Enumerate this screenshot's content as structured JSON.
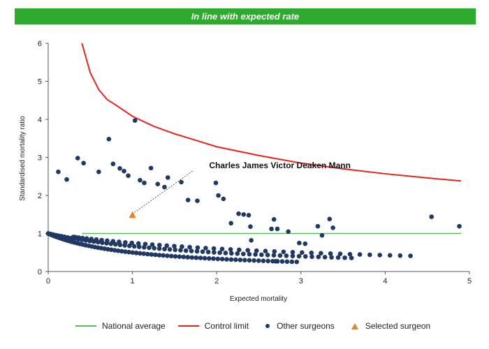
{
  "banner": {
    "text": "In line with expected rate",
    "color": "#2eaa2e"
  },
  "chart_data": {
    "type": "scatter",
    "xlabel": "Expected mortality",
    "ylabel": "Standardised mortality ratio",
    "xlim": [
      0,
      5
    ],
    "ylim": [
      0,
      6
    ],
    "x_ticks": [
      "0",
      "1",
      "2",
      "3",
      "4",
      "5"
    ],
    "y_ticks": [
      "0",
      "1",
      "2",
      "3",
      "4",
      "5",
      "6"
    ],
    "grid": false,
    "legend_position": "bottom",
    "series": [
      {
        "name": "National average",
        "type": "line",
        "color": "#5cb85c",
        "x": [
          0.4,
          4.9
        ],
        "y": [
          1,
          1
        ]
      },
      {
        "name": "Control limit",
        "type": "line",
        "color": "#e8231f",
        "x": [
          0.4,
          0.5,
          0.6,
          0.7,
          0.8,
          1.0,
          1.25,
          1.5,
          1.75,
          2.0,
          2.5,
          3.0,
          3.5,
          4.0,
          4.5,
          4.9
        ],
        "y": [
          6.0,
          5.22,
          4.78,
          4.52,
          4.38,
          4.08,
          3.82,
          3.62,
          3.45,
          3.28,
          3.05,
          2.85,
          2.7,
          2.57,
          2.46,
          2.38
        ]
      },
      {
        "name": "Other surgeons",
        "type": "scatter",
        "color": "#1f3864",
        "bands": [
          {
            "deaths": 1,
            "x_from": 0.0,
            "x_to": 2.95,
            "n": 70
          },
          {
            "deaths": 2,
            "x_from": 0.0,
            "x_to": 3.6,
            "n": 62
          },
          {
            "deaths": 3,
            "x_from": 0.3,
            "x_to": 4.3,
            "n": 45
          }
        ],
        "x": [
          0.12,
          0.22,
          0.35,
          0.42,
          0.6,
          0.72,
          0.77,
          0.85,
          0.9,
          0.95,
          1.03,
          1.09,
          1.14,
          1.22,
          1.3,
          1.38,
          1.42,
          1.58,
          1.66,
          1.77,
          1.99,
          2.02,
          2.08,
          2.17,
          2.26,
          2.32,
          2.38,
          2.4,
          2.41,
          2.65,
          2.68,
          2.7,
          2.72,
          2.85,
          2.98,
          3.05,
          3.2,
          3.25,
          3.34,
          3.38,
          4.55,
          4.88
        ],
        "y": [
          2.62,
          2.42,
          2.98,
          2.85,
          2.62,
          3.48,
          2.83,
          2.71,
          2.64,
          2.52,
          3.97,
          2.4,
          2.33,
          2.72,
          2.3,
          2.22,
          2.47,
          2.35,
          1.88,
          1.86,
          2.33,
          2.0,
          1.91,
          1.27,
          1.52,
          1.5,
          1.48,
          1.18,
          0.82,
          1.12,
          1.37,
          0.27,
          1.12,
          1.05,
          0.75,
          0.73,
          1.19,
          0.95,
          1.38,
          1.15,
          1.44,
          1.19
        ]
      },
      {
        "name": "Selected surgeon",
        "type": "scatter",
        "marker": "triangle",
        "color": "#f0821e",
        "x": [
          1.0
        ],
        "y": [
          1.48
        ]
      }
    ],
    "annotations": [
      {
        "text": "Charles James Victor Deaken Mann",
        "x": 2.75,
        "y": 2.72,
        "points_to": [
          1.0,
          1.48
        ]
      }
    ]
  }
}
